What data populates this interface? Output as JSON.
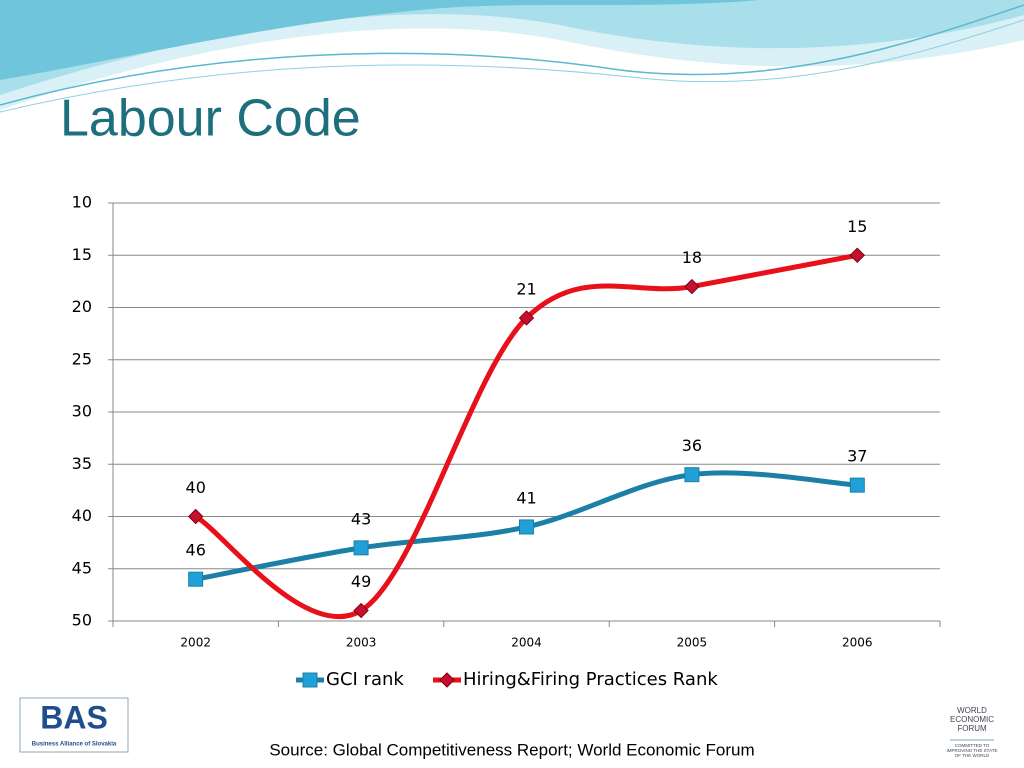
{
  "title": "Labour Code",
  "chart_data": {
    "type": "line",
    "categories": [
      "2002",
      "2003",
      "2004",
      "2005",
      "2006"
    ],
    "series": [
      {
        "name": "GCI rank",
        "color": "#1c7fa6",
        "marker": "square",
        "values": [
          46,
          43,
          41,
          36,
          37
        ]
      },
      {
        "name": "Hiring&Firing Practices Rank",
        "color": "#e8101a",
        "marker": "diamond",
        "values": [
          40,
          49,
          21,
          18,
          15
        ]
      }
    ],
    "ylim": [
      50,
      10
    ],
    "yticks": [
      10,
      15,
      20,
      25,
      30,
      35,
      40,
      45,
      50
    ],
    "grid": true,
    "smooth": true,
    "legend": "bottom"
  },
  "source": "Source: Global Competitiveness Report; World Economic Forum",
  "logos": {
    "bas": {
      "name": "BAS",
      "subtitle": "Business Alliance of Slovakia"
    },
    "wef": {
      "name": [
        "WORLD",
        "ECONOMIC",
        "FORUM"
      ],
      "tagline": [
        "COMMITTED TO",
        "IMPROVING THE STATE",
        "OF THE WORLD"
      ]
    }
  }
}
